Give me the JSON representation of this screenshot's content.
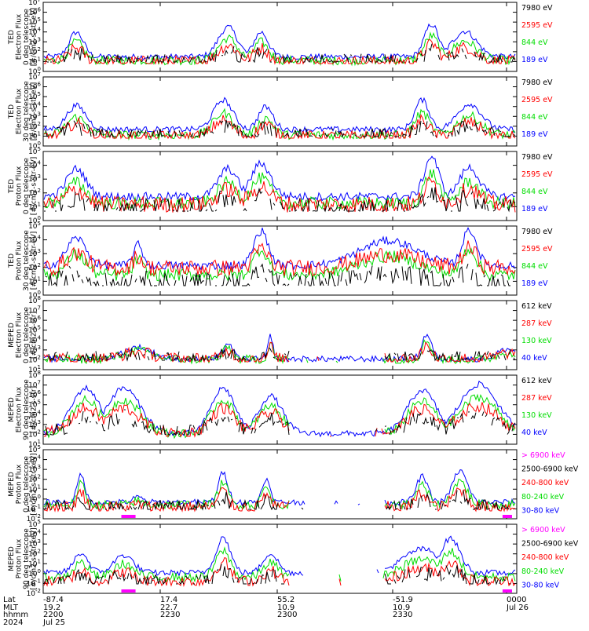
{
  "colors": {
    "blue": "#0000ff",
    "red": "#ff0000",
    "green": "#00dd00",
    "black": "#000000",
    "magenta": "#ff00ff"
  },
  "chart_data": [
    {
      "type": "line",
      "ylabel": [
        "TED",
        "Electron Flux",
        "0 deg telescope",
        "[#/cm2-s-str-eV]"
      ],
      "yticks": [
        "10^0",
        "10^1",
        "10^2",
        "10^3",
        "10^4",
        "10^5",
        "10^6",
        "10^7"
      ],
      "legend": [
        {
          "label": "7980 eV",
          "color": "black"
        },
        {
          "label": "2595 eV",
          "color": "red"
        },
        {
          "label": "844 eV",
          "color": "green"
        },
        {
          "label": "189 eV",
          "color": "blue"
        }
      ]
    },
    {
      "type": "line",
      "ylabel": [
        "TED",
        "Electron Flux",
        "30 deg telescope",
        "[#/cm2-s-str-eV]"
      ],
      "yticks": [
        "10^0",
        "10^1",
        "10^2",
        "10^3",
        "10^4",
        "10^5",
        "10^6",
        "10^7"
      ],
      "legend": [
        {
          "label": "7980 eV",
          "color": "black"
        },
        {
          "label": "2595 eV",
          "color": "red"
        },
        {
          "label": "844 eV",
          "color": "green"
        },
        {
          "label": "189 eV",
          "color": "blue"
        }
      ]
    },
    {
      "type": "line",
      "ylabel": [
        "TED",
        "Proton Flux",
        "0 deg telescope",
        "[#/cm2-s-str-eV]"
      ],
      "yticks": [
        "10^0",
        "10^1",
        "10^2",
        "10^3",
        "10^4",
        "10^5"
      ],
      "legend": [
        {
          "label": "7980 eV",
          "color": "black"
        },
        {
          "label": "2595 eV",
          "color": "red"
        },
        {
          "label": "844 eV",
          "color": "green"
        },
        {
          "label": "189 eV",
          "color": "blue"
        }
      ]
    },
    {
      "type": "line",
      "ylabel": [
        "TED",
        "Proton Flux",
        "30 deg telescope",
        "[#/cm2-s-str-eV]"
      ],
      "yticks": [
        "10^0",
        "10^1",
        "10^2",
        "10^3",
        "10^4",
        "10^5"
      ],
      "legend": [
        {
          "label": "7980 eV",
          "color": "black"
        },
        {
          "label": "2595 eV",
          "color": "red"
        },
        {
          "label": "844 eV",
          "color": "green"
        },
        {
          "label": "189 eV",
          "color": "blue"
        }
      ]
    },
    {
      "type": "line",
      "ylabel": [
        "MEPED",
        "Electron Flux",
        "0 deg telescope",
        "[#/cm2-s-str]"
      ],
      "yticks": [
        "10^1",
        "10^2",
        "10^3",
        "10^4",
        "10^5",
        "10^6",
        "10^7",
        "10^8"
      ],
      "legend": [
        {
          "label": "612 keV",
          "color": "black"
        },
        {
          "label": "287 keV",
          "color": "red"
        },
        {
          "label": "130 keV",
          "color": "green"
        },
        {
          "label": "40 keV",
          "color": "blue"
        }
      ]
    },
    {
      "type": "line",
      "ylabel": [
        "MEPED",
        "Electron Flux",
        "90 deg telescope",
        "[#/cm2-s-str]"
      ],
      "yticks": [
        "10^1",
        "10^2",
        "10^3",
        "10^4",
        "10^5",
        "10^6",
        "10^7",
        "10^8"
      ],
      "legend": [
        {
          "label": "612 keV",
          "color": "black"
        },
        {
          "label": "287 keV",
          "color": "red"
        },
        {
          "label": "130 keV",
          "color": "green"
        },
        {
          "label": "40 keV",
          "color": "blue"
        }
      ]
    },
    {
      "type": "line",
      "ylabel": [
        "MEPED",
        "Proton Flux",
        "0 deg telescope",
        "[#/cm2-s-str-keV]"
      ],
      "yticks": [
        "10^-2",
        "10^-1",
        "10^0",
        "10^1",
        "10^2",
        "10^3",
        "10^4",
        "10^5"
      ],
      "legend": [
        {
          "label": "> 6900 keV",
          "color": "magenta"
        },
        {
          "label": "2500-6900 keV",
          "color": "black"
        },
        {
          "label": "240-800 keV",
          "color": "red"
        },
        {
          "label": "80-240 keV",
          "color": "green"
        },
        {
          "label": "30-80 keV",
          "color": "blue"
        }
      ]
    },
    {
      "type": "line",
      "ylabel": [
        "MEPED",
        "Proton Flux",
        "90 deg telescope",
        "[#/cm2-s-str-keV]"
      ],
      "yticks": [
        "10^-2",
        "10^-1",
        "10^0",
        "10^1",
        "10^2",
        "10^3",
        "10^4",
        "10^5"
      ],
      "legend": [
        {
          "label": "> 6900 keV",
          "color": "magenta"
        },
        {
          "label": "2500-6900 keV",
          "color": "black"
        },
        {
          "label": "240-800 keV",
          "color": "red"
        },
        {
          "label": "80-240 keV",
          "color": "green"
        },
        {
          "label": "30-80 keV",
          "color": "blue"
        }
      ]
    }
  ],
  "xaxis": {
    "row_labels": [
      "Lat",
      "MLT",
      "hhmm",
      "2024"
    ],
    "ticks": [
      {
        "lat": "-87.4",
        "mlt": "19.2",
        "hhmm": "2200",
        "date": "Jul 25"
      },
      {
        "lat": "17.4",
        "mlt": "22.7",
        "hhmm": "2230",
        "date": ""
      },
      {
        "lat": "55.2",
        "mlt": "10.9",
        "hhmm": "2300",
        "date": ""
      },
      {
        "lat": "-51.9",
        "mlt": "10.9",
        "hhmm": "2330",
        "date": ""
      },
      {
        "lat": "",
        "mlt": "",
        "hhmm": "0000",
        "date": "Jul 26"
      }
    ]
  }
}
